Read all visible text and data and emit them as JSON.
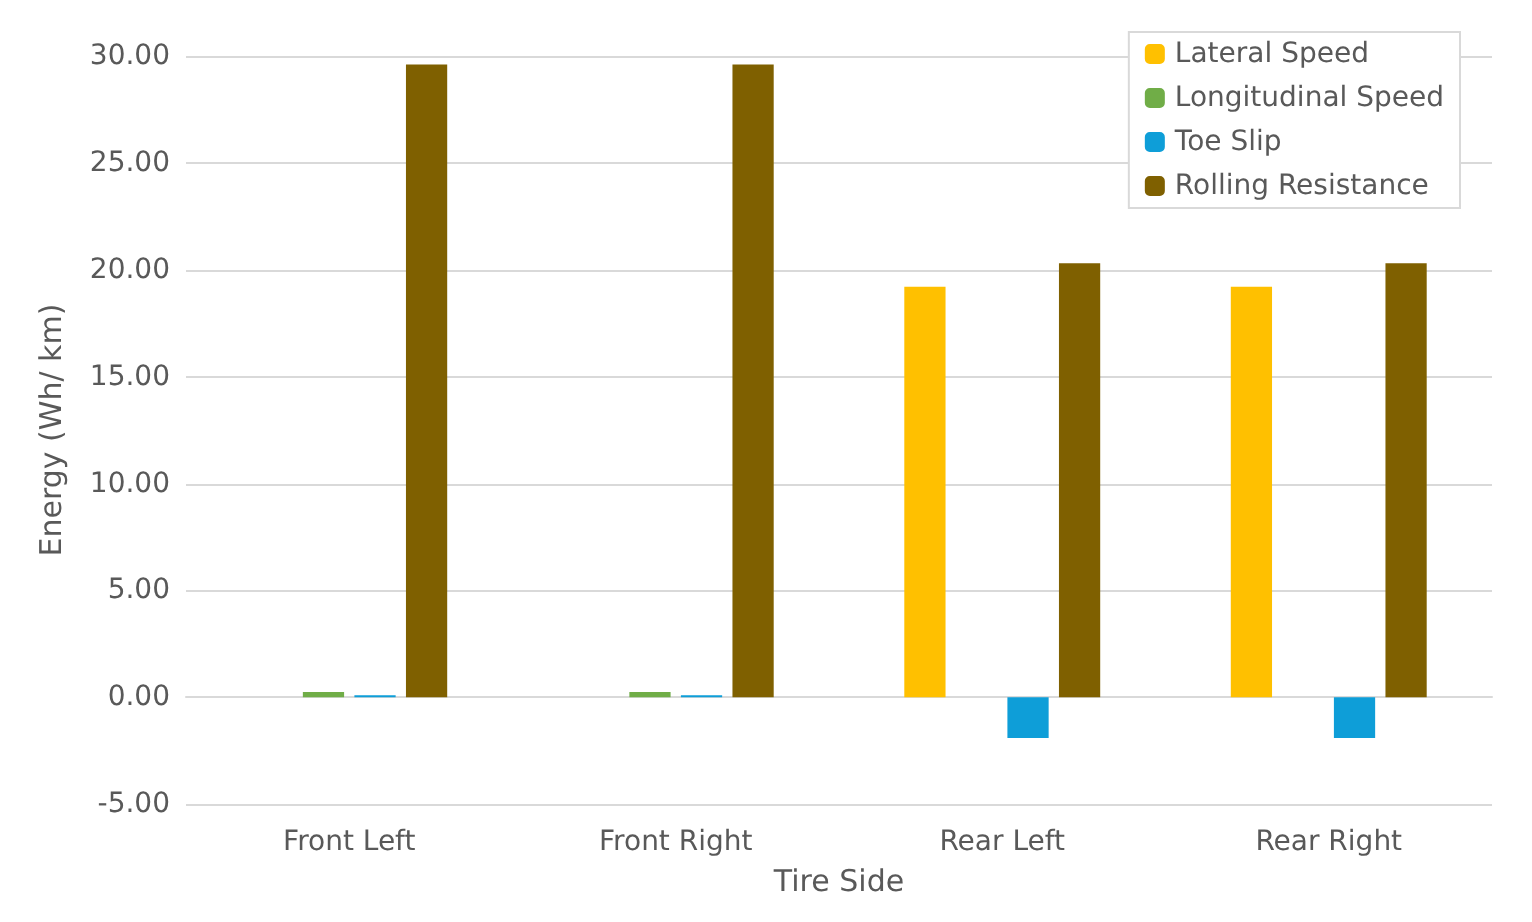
{
  "chart_data": {
    "type": "bar",
    "xlabel": "Tire Side",
    "ylabel": "Energy (Wh/ km)",
    "categories": [
      "Front Left",
      "Front Right",
      "Rear Left",
      "Rear Right"
    ],
    "series": [
      {
        "name": "Lateral Speed",
        "color": "#ffc000",
        "values": [
          0,
          0,
          19.2,
          19.2
        ]
      },
      {
        "name": "Longitudinal Speed",
        "color": "#70ad47",
        "values": [
          0.25,
          0.25,
          0,
          0
        ]
      },
      {
        "name": "Toe Slip",
        "color": "#0e9ed8",
        "values": [
          0.1,
          0.1,
          -1.9,
          -1.9
        ]
      },
      {
        "name": "Rolling Resistance",
        "color": "#7f6000",
        "values": [
          29.6,
          29.6,
          20.3,
          20.3
        ]
      }
    ],
    "ylim": [
      -5,
      30
    ],
    "yticks": [
      {
        "value": -5,
        "label": "-5.00"
      },
      {
        "value": 0,
        "label": "0.00"
      },
      {
        "value": 5,
        "label": "5.00"
      },
      {
        "value": 10,
        "label": "10.00"
      },
      {
        "value": 15,
        "label": "15.00"
      },
      {
        "value": 20,
        "label": "20.00"
      },
      {
        "value": 25,
        "label": "25.00"
      },
      {
        "value": 30,
        "label": "30.00"
      }
    ],
    "grid": "y",
    "legend": "top right"
  }
}
